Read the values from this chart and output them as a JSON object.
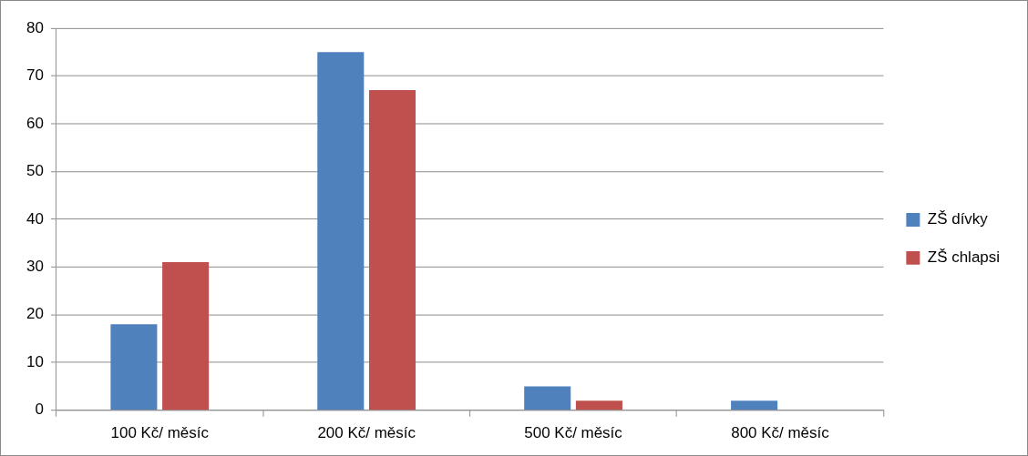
{
  "chart_data": {
    "type": "bar",
    "categories": [
      "100 Kč/ měsíc",
      "200 Kč/ měsíc",
      "500 Kč/ měsíc",
      "800 Kč/ měsíc"
    ],
    "series": [
      {
        "name": "ZŠ dívky",
        "color": "#4f81bd",
        "values": [
          18,
          75,
          5,
          2
        ]
      },
      {
        "name": "ZŠ chlapsi",
        "color": "#c0504d",
        "values": [
          31,
          67,
          2,
          0
        ]
      }
    ],
    "ylim": [
      0,
      80
    ],
    "yticks": [
      0,
      10,
      20,
      30,
      40,
      50,
      60,
      70,
      80
    ],
    "grid": "y",
    "legend": "right"
  }
}
